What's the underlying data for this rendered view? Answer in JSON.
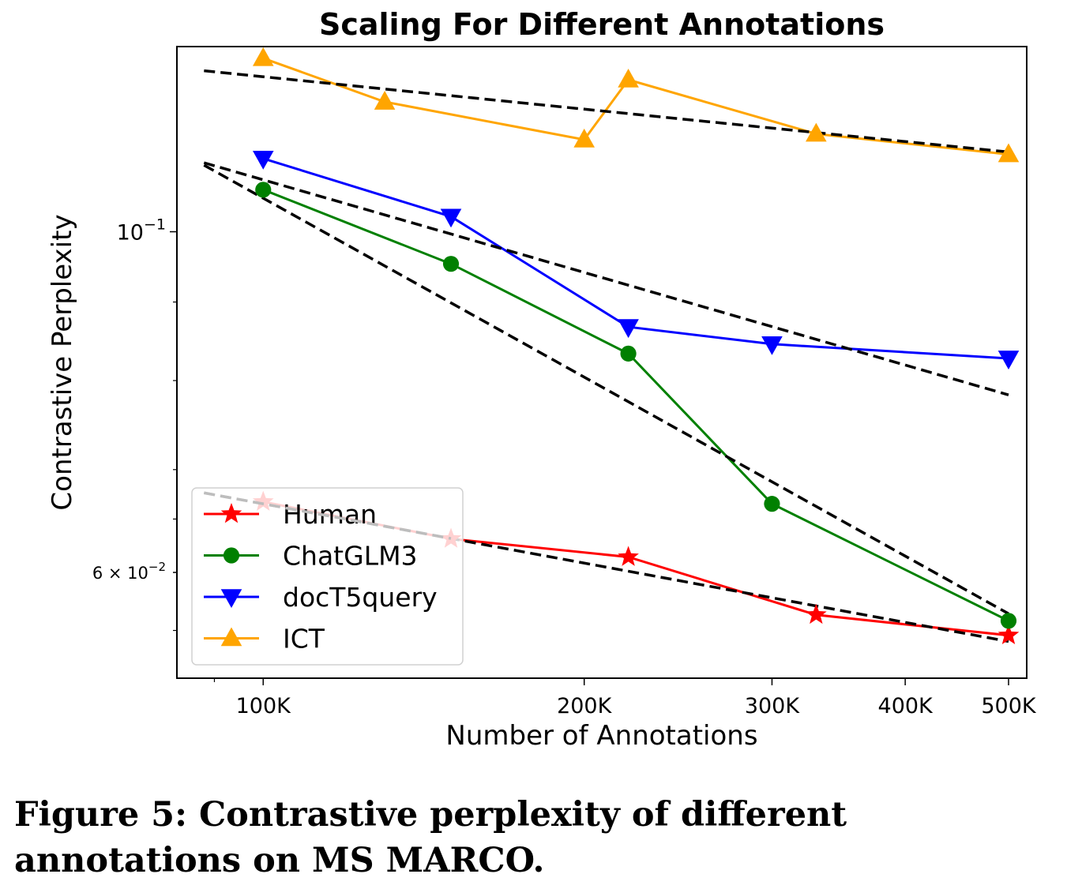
{
  "caption": "Figure 5: Contrastive perplexity of different annotations on MS MARCO.",
  "chart_data": {
    "type": "line",
    "title": "Scaling For Different Annotations",
    "xlabel": "Number of Annotations",
    "ylabel": "Contrastive Perplexity",
    "x_scale": "log",
    "y_scale": "log",
    "xlim": [
      83000,
      520000
    ],
    "ylim": [
      0.0512,
      0.132
    ],
    "x_ticks": [
      {
        "value": 100000,
        "label": "100K"
      },
      {
        "value": 200000,
        "label": "200K"
      },
      {
        "value": 300000,
        "label": "300K"
      },
      {
        "value": 400000,
        "label": "400K"
      },
      {
        "value": 500000,
        "label": "500K"
      }
    ],
    "y_ticks": [
      {
        "value": 0.1,
        "base": "10",
        "exp": "−1",
        "style": "major"
      },
      {
        "value": 0.06,
        "base": "6 × 10",
        "exp": "−2",
        "style": "minor"
      }
    ],
    "grid": false,
    "legend_position": "lower-left",
    "series": [
      {
        "name": "Human",
        "color": "#ff0000",
        "marker": "star",
        "x": [
          100000,
          150000,
          220000,
          330000,
          500000
        ],
        "y": [
          0.0667,
          0.0631,
          0.0614,
          0.0563,
          0.0546
        ],
        "trend": {
          "x": [
            88000,
            500000
          ],
          "y": [
            0.0676,
            0.0541
          ],
          "faded_until": 150000
        }
      },
      {
        "name": "ChatGLM3",
        "color": "#008000",
        "marker": "circle",
        "x": [
          100000,
          150000,
          220000,
          300000,
          500000
        ],
        "y": [
          0.1065,
          0.0953,
          0.0833,
          0.0665,
          0.0558
        ],
        "trend": {
          "x": [
            88000,
            500000
          ],
          "y": [
            0.1105,
            0.0564
          ]
        }
      },
      {
        "name": "docT5query",
        "color": "#0000ff",
        "marker": "triangle-down",
        "x": [
          100000,
          150000,
          220000,
          300000,
          500000
        ],
        "y": [
          0.1116,
          0.1023,
          0.0867,
          0.0845,
          0.0827
        ],
        "trend": {
          "x": [
            88000,
            500000
          ],
          "y": [
            0.1109,
            0.0783
          ]
        }
      },
      {
        "name": "ICT",
        "color": "#ffa500",
        "marker": "triangle-up",
        "x": [
          100000,
          130000,
          200000,
          220000,
          330000,
          500000
        ],
        "y": [
          0.1297,
          0.1215,
          0.1148,
          0.1256,
          0.1158,
          0.1123
        ],
        "trend": {
          "x": [
            88000,
            500000
          ],
          "y": [
            0.1273,
            0.1127
          ]
        }
      }
    ]
  }
}
